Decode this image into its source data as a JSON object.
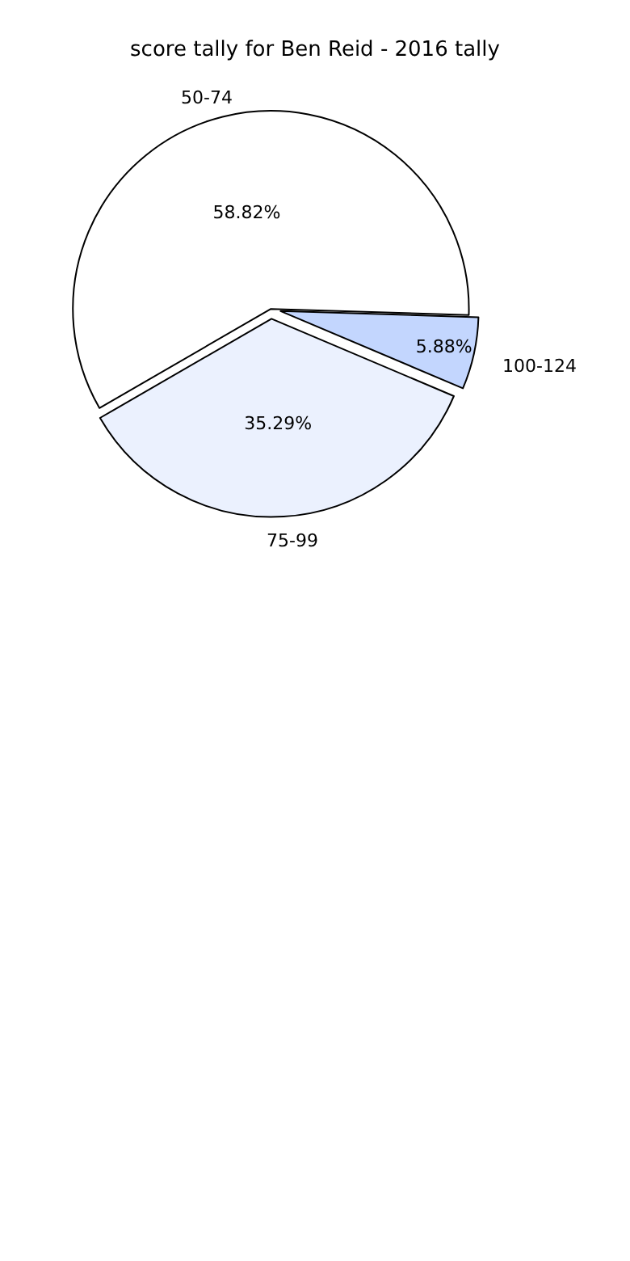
{
  "chart_data": {
    "type": "pie",
    "title": "score tally for Ben Reid - 2016 tally",
    "categories": [
      "50-74",
      "75-99",
      "100-124"
    ],
    "values": [
      58.82,
      35.29,
      5.88
    ],
    "colors": [
      "#ffffff",
      "#ebf1fe",
      "#c3d6fe"
    ],
    "value_labels": [
      "58.82%",
      "35.29%",
      "5.88%"
    ],
    "legend": false
  }
}
